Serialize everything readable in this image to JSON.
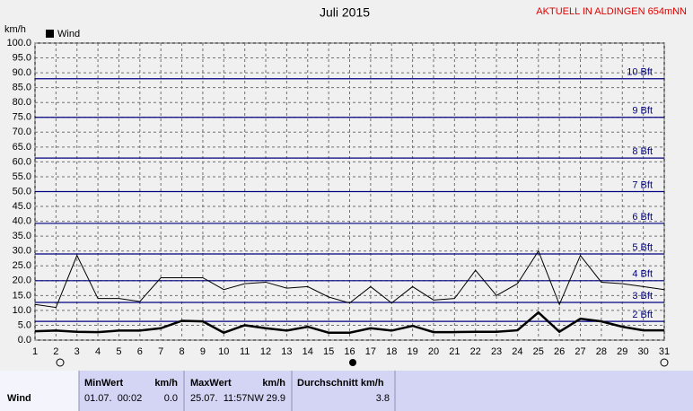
{
  "chart_data": {
    "type": "line",
    "title": "Juli 2015",
    "subtitle": "AKTUELL IN ALDINGEN 654mNN",
    "y_label": "km/h",
    "x": [
      1,
      2,
      3,
      4,
      5,
      6,
      7,
      8,
      9,
      10,
      11,
      12,
      13,
      14,
      15,
      16,
      17,
      18,
      19,
      20,
      21,
      22,
      23,
      24,
      25,
      26,
      27,
      28,
      29,
      30,
      31
    ],
    "xlim": [
      1,
      31
    ],
    "xticks": [
      1,
      2,
      3,
      4,
      5,
      6,
      7,
      8,
      9,
      10,
      11,
      12,
      13,
      14,
      15,
      16,
      17,
      18,
      19,
      20,
      21,
      22,
      23,
      24,
      25,
      26,
      27,
      28,
      29,
      30,
      31
    ],
    "ylim": [
      0,
      100
    ],
    "yticks": [
      {
        "value": 0,
        "label": "0.0"
      },
      {
        "value": 5,
        "label": "5.0"
      },
      {
        "value": 10,
        "label": "10.0"
      },
      {
        "value": 15,
        "label": "15.0"
      },
      {
        "value": 20,
        "label": "20.0"
      },
      {
        "value": 25,
        "label": "25.0"
      },
      {
        "value": 30,
        "label": "30.0"
      },
      {
        "value": 35,
        "label": "35.0"
      },
      {
        "value": 40,
        "label": "40.0"
      },
      {
        "value": 45,
        "label": "45.0"
      },
      {
        "value": 50,
        "label": "50.0"
      },
      {
        "value": 55,
        "label": "55.0"
      },
      {
        "value": 60,
        "label": "60.0"
      },
      {
        "value": 65,
        "label": "65.0"
      },
      {
        "value": 70,
        "label": "70.0"
      },
      {
        "value": 75,
        "label": "75.0"
      },
      {
        "value": 80,
        "label": "80.0"
      },
      {
        "value": 85,
        "label": "85.0"
      },
      {
        "value": 90,
        "label": "90.0"
      },
      {
        "value": 95,
        "label": "95.0"
      },
      {
        "value": 100,
        "label": "100.0"
      }
    ],
    "grid": true,
    "reference_lines": [
      {
        "value": 6.3,
        "label": "2 Bft"
      },
      {
        "value": 12.7,
        "label": "3 Bft"
      },
      {
        "value": 20,
        "label": "4 Bft"
      },
      {
        "value": 29,
        "label": "5 Bft"
      },
      {
        "value": 39.3,
        "label": "6 Bft"
      },
      {
        "value": 50,
        "label": "7 Bft"
      },
      {
        "value": 61.3,
        "label": "8 Bft"
      },
      {
        "value": 75,
        "label": "9 Bft"
      },
      {
        "value": 88,
        "label": "10 Bft"
      }
    ],
    "reference_color": "#000080",
    "series": [
      {
        "color": "#000000",
        "width": 1,
        "values": [
          12,
          11,
          28.5,
          14,
          14,
          13,
          21,
          21,
          21,
          17,
          19,
          19.5,
          17.5,
          18,
          14.5,
          12.5,
          18,
          12.5,
          18,
          13.5,
          14,
          23.5,
          15,
          19,
          30,
          12,
          28.5,
          19.5,
          19,
          18,
          17
        ]
      },
      {
        "name": "Wind",
        "color": "#000000",
        "width": 2.5,
        "values": [
          3,
          3.2,
          2.8,
          2.7,
          3.2,
          3.2,
          4,
          6.5,
          6.3,
          2.5,
          5,
          4,
          3.2,
          4.5,
          2.5,
          2.5,
          4,
          3.2,
          4.8,
          2.7,
          2.7,
          2.8,
          2.8,
          3.3,
          9.3,
          2.8,
          7.2,
          6.3,
          4.5,
          3.3,
          3.3
        ]
      }
    ]
  },
  "table": {
    "header": [
      "MinWert",
      "km/h",
      "MaxWert",
      "km/h",
      "Durchschnitt km/h"
    ],
    "rows": [
      [
        "Wind",
        "01.07.  00:02",
        "0.0",
        "25.07.  11:57NW",
        "29.9",
        "3.8"
      ]
    ]
  }
}
